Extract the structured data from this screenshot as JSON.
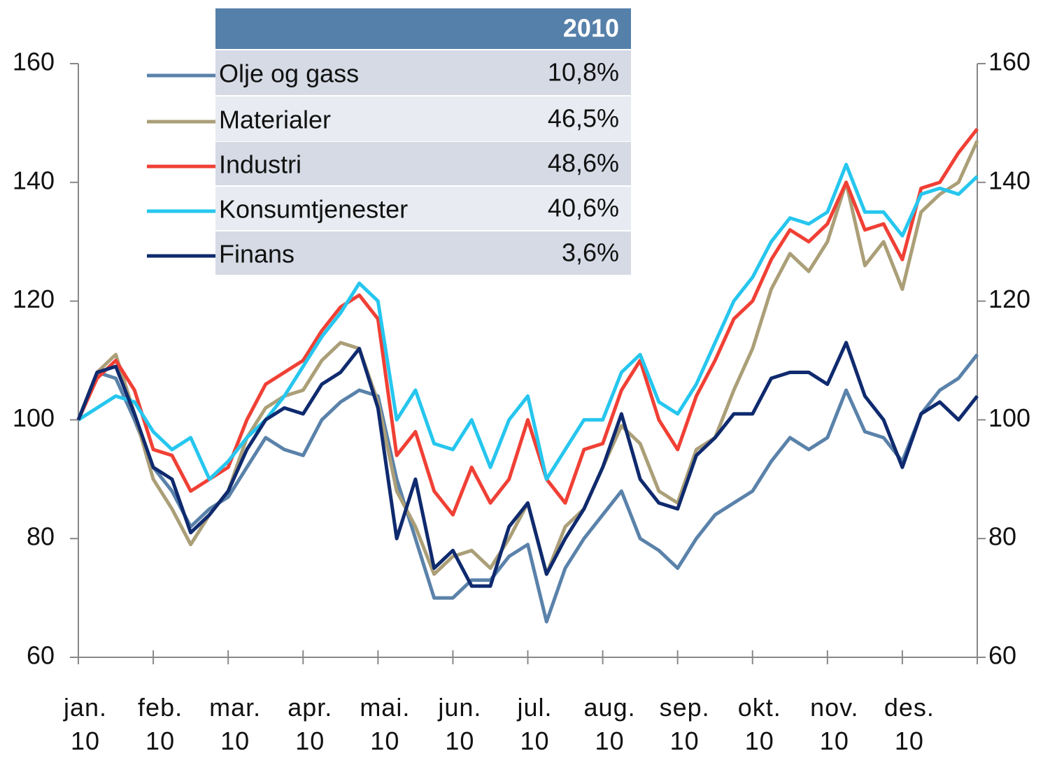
{
  "chart_data": {
    "type": "line",
    "categories": [
      "jan.\n10",
      null,
      null,
      null,
      "feb.\n10",
      null,
      null,
      null,
      "mar.\n10",
      null,
      null,
      null,
      "apr.\n10",
      null,
      null,
      null,
      "mai.\n10",
      null,
      null,
      null,
      "jun.\n10",
      null,
      null,
      null,
      "jul.\n10",
      null,
      null,
      null,
      "aug.\n10",
      null,
      null,
      null,
      "sep.\n10",
      null,
      null,
      null,
      "okt.\n10",
      null,
      null,
      null,
      "nov.\n10",
      null,
      null,
      null,
      "des.\n10",
      null,
      null,
      null,
      null
    ],
    "ylim": [
      60,
      160
    ],
    "yticks": [
      60,
      80,
      100,
      120,
      140,
      160
    ],
    "y2lim": [
      60,
      160
    ],
    "y2ticks": [
      60,
      80,
      100,
      120,
      140,
      160
    ],
    "legend_header": "2010",
    "series": [
      {
        "name": "Olje og gass",
        "color": "#5a82aa",
        "change": 10.8,
        "change_label": "10,8%",
        "values": [
          100,
          108,
          107,
          100,
          92,
          88,
          82,
          85,
          87,
          92,
          97,
          95,
          94,
          100,
          103,
          105,
          104,
          90,
          80,
          70,
          70,
          73,
          73,
          77,
          79,
          66,
          75,
          80,
          84,
          88,
          80,
          78,
          75,
          80,
          84,
          86,
          88,
          93,
          97,
          95,
          97,
          105,
          98,
          97,
          93,
          101,
          105,
          107,
          111
        ]
      },
      {
        "name": "Materialer",
        "color": "#ab9f78",
        "change": 46.5,
        "change_label": "46,5%",
        "values": [
          100,
          108,
          111,
          101,
          90,
          85,
          79,
          84,
          88,
          97,
          102,
          104,
          105,
          110,
          113,
          112,
          103,
          88,
          82,
          74,
          77,
          78,
          75,
          80,
          86,
          74,
          82,
          85,
          92,
          99,
          96,
          88,
          86,
          95,
          97,
          105,
          112,
          122,
          128,
          125,
          130,
          140,
          126,
          130,
          122,
          135,
          138,
          140,
          147
        ]
      },
      {
        "name": "Industri",
        "color": "#f04035",
        "change": 48.6,
        "change_label": "48,6%",
        "values": [
          100,
          107,
          110,
          105,
          95,
          94,
          88,
          90,
          92,
          100,
          106,
          108,
          110,
          115,
          119,
          121,
          117,
          94,
          98,
          88,
          84,
          92,
          86,
          90,
          100,
          90,
          86,
          95,
          96,
          105,
          110,
          100,
          95,
          104,
          110,
          117,
          120,
          127,
          132,
          130,
          133,
          140,
          132,
          133,
          127,
          139,
          140,
          145,
          149
        ]
      },
      {
        "name": "Konsumtjenester",
        "color": "#26c6ee",
        "change": 40.6,
        "change_label": "40,6%",
        "values": [
          100,
          102,
          104,
          103,
          98,
          95,
          97,
          90,
          93,
          97,
          100,
          104,
          109,
          114,
          118,
          123,
          120,
          100,
          105,
          96,
          95,
          100,
          92,
          100,
          104,
          90,
          95,
          100,
          100,
          108,
          111,
          103,
          101,
          106,
          113,
          120,
          124,
          130,
          134,
          133,
          135,
          143,
          135,
          135,
          131,
          138,
          139,
          138,
          141
        ]
      },
      {
        "name": "Finans",
        "color": "#0f2a6e",
        "change": 3.6,
        "change_label": "3,6%",
        "values": [
          100,
          108,
          109,
          101,
          92,
          90,
          81,
          84,
          88,
          95,
          100,
          102,
          101,
          106,
          108,
          112,
          102,
          80,
          90,
          75,
          78,
          72,
          72,
          82,
          86,
          74,
          80,
          85,
          92,
          101,
          90,
          86,
          85,
          94,
          97,
          101,
          101,
          107,
          108,
          108,
          106,
          113,
          104,
          100,
          92,
          101,
          103,
          100,
          104
        ]
      }
    ]
  }
}
